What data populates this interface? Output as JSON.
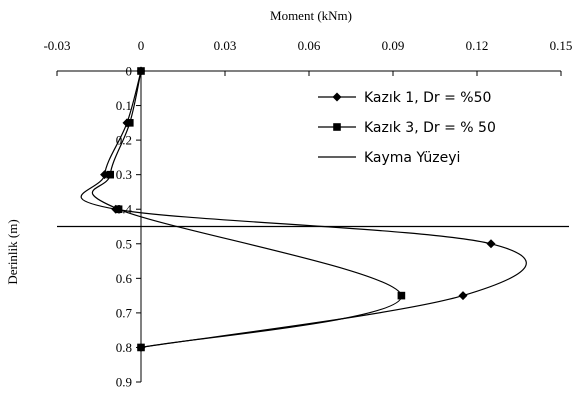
{
  "chart_data": {
    "type": "line",
    "title": "",
    "xlabel": "Moment (kNm)",
    "ylabel": "Derinlik (m)",
    "x_axis_position": "top",
    "y_inverted": true,
    "xlim": [
      -0.03,
      0.15
    ],
    "ylim": [
      0,
      0.9
    ],
    "x_ticks": [
      "-0.03",
      "0",
      "0.03",
      "0.06",
      "0.09",
      "0.12",
      "0.15"
    ],
    "y_ticks": [
      "0",
      "0.1",
      "0.2",
      "0.3",
      "0.4",
      "0.5",
      "0.6",
      "0.7",
      "0.8",
      "0.9"
    ],
    "legend_position": "top-right",
    "grid": false,
    "series": [
      {
        "name": "Kazık 1, Dr = %50",
        "marker": "diamond",
        "color": "#000000",
        "points": [
          [
            0,
            0
          ],
          [
            -0.005,
            0.15
          ],
          [
            -0.013,
            0.3
          ],
          [
            -0.009,
            0.4
          ],
          [
            0.125,
            0.5
          ],
          [
            0.115,
            0.65
          ],
          [
            0,
            0.8
          ]
        ]
      },
      {
        "name": "Kazık 3, Dr = % 50",
        "marker": "square",
        "color": "#000000",
        "points": [
          [
            0,
            0
          ],
          [
            -0.004,
            0.15
          ],
          [
            -0.011,
            0.3
          ],
          [
            -0.008,
            0.4
          ],
          [
            0.093,
            0.65
          ],
          [
            0,
            0.8
          ]
        ]
      }
    ],
    "reference_lines": [
      {
        "name": "Kayma Yüzeyi",
        "orientation": "horizontal",
        "y": 0.45,
        "color": "#000000"
      }
    ]
  }
}
